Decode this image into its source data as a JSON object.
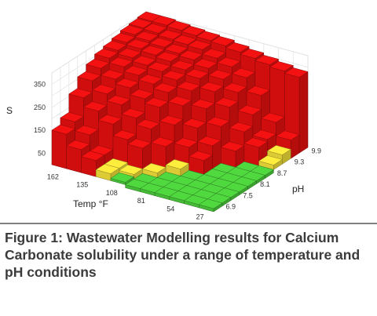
{
  "chart_data": {
    "type": "3d-bar",
    "x_axis": {
      "label": "pH",
      "ticks": [
        "6.9",
        "7.5",
        "8.1",
        "8.7",
        "9.3",
        "9.9"
      ]
    },
    "y_axis": {
      "label": "Temp °F",
      "ticks": [
        "27",
        "54",
        "81",
        "108",
        "135",
        "162"
      ]
    },
    "z_axis": {
      "label": "S",
      "ticks": [
        "50",
        "150",
        "250",
        "350"
      ]
    },
    "zlim": [
      0,
      400
    ],
    "pH_values": [
      6.9,
      7.2,
      7.5,
      7.8,
      8.1,
      8.4,
      8.7,
      9.0,
      9.3,
      9.6,
      9.9
    ],
    "temp_values": [
      27,
      40.5,
      54,
      67.5,
      81,
      94.5,
      108,
      121.5,
      135,
      148.5,
      162
    ],
    "legend": "none",
    "colors": {
      "low": "#4ccf3c",
      "mid": "#f4e23a",
      "high": "#e81010"
    },
    "values_by_temp": [
      {
        "temp": 27,
        "S": [
          0,
          0,
          0,
          0,
          0,
          0,
          0,
          20,
          40,
          80,
          330
        ]
      },
      {
        "temp": 40.5,
        "S": [
          0,
          0,
          0,
          0,
          0,
          0,
          0,
          80,
          90,
          140,
          340
        ]
      },
      {
        "temp": 54,
        "S": [
          0,
          0,
          0,
          0,
          0,
          0,
          70,
          130,
          180,
          240,
          350
        ]
      },
      {
        "temp": 67.5,
        "S": [
          0,
          0,
          0,
          0,
          60,
          100,
          160,
          220,
          260,
          300,
          360
        ]
      },
      {
        "temp": 81,
        "S": [
          0,
          0,
          0,
          30,
          100,
          160,
          220,
          270,
          300,
          330,
          370
        ]
      },
      {
        "temp": 94.5,
        "S": [
          0,
          0,
          20,
          110,
          180,
          240,
          280,
          310,
          330,
          350,
          380
        ]
      },
      {
        "temp": 108,
        "S": [
          10,
          20,
          110,
          170,
          240,
          280,
          310,
          330,
          350,
          370,
          385
        ]
      },
      {
        "temp": 121.5,
        "S": [
          30,
          30,
          130,
          200,
          260,
          300,
          330,
          350,
          360,
          375,
          390
        ]
      },
      {
        "temp": 135,
        "S": [
          70,
          70,
          180,
          240,
          290,
          320,
          340,
          360,
          370,
          380,
          395
        ]
      },
      {
        "temp": 148.5,
        "S": [
          100,
          140,
          220,
          270,
          310,
          340,
          355,
          370,
          380,
          390,
          400
        ]
      },
      {
        "temp": 162,
        "S": [
          150,
          180,
          260,
          310,
          340,
          360,
          370,
          380,
          390,
          395,
          400
        ]
      }
    ]
  },
  "caption": "Figure 1: Wastewater Modelling results for Calcium Carbonate solubility under a range of temperature and pH conditions"
}
